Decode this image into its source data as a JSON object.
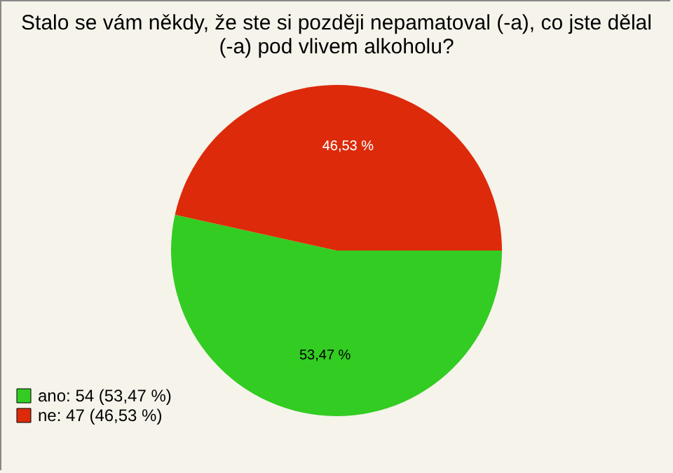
{
  "chart_data": {
    "type": "pie",
    "title": "Stalo se vám někdy, že ste si později nepamatoval (-a), co jste dělal (-a) pod vlivem alkoholu?",
    "categories": [
      "ano: 54 (53,47 %)",
      "ne: 47 (46,53 %)"
    ],
    "values": [
      53.47,
      46.53
    ],
    "value_labels": [
      "53,47 %",
      "46,53 %"
    ],
    "colors": [
      "#33cc22",
      "#dd2a0a"
    ],
    "legend": "bottom left"
  }
}
